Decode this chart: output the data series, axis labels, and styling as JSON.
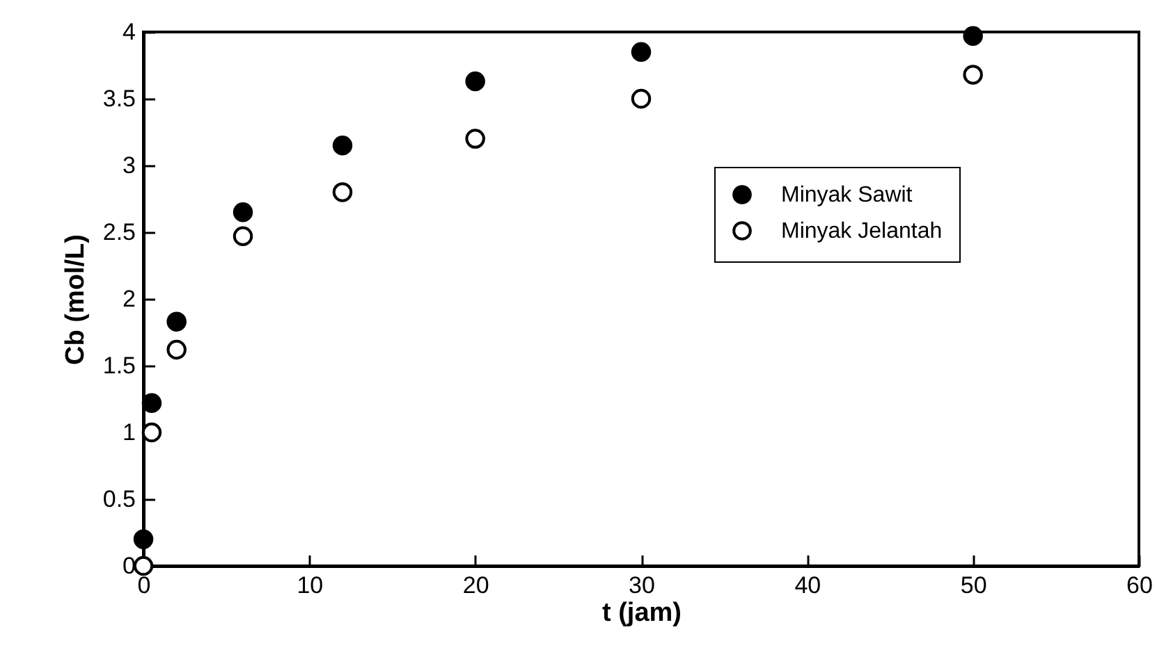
{
  "chart_data": {
    "type": "scatter",
    "xlabel": "t (jam)",
    "ylabel": "Cb (mol/L)",
    "x": [
      0,
      0.5,
      2,
      6,
      12,
      20,
      30,
      50
    ],
    "series": [
      {
        "name": "Minyak Sawit",
        "color": "#000000",
        "values": [
          0.2,
          1.22,
          1.83,
          2.65,
          3.15,
          3.63,
          3.85,
          3.97
        ]
      },
      {
        "name": "Minyak Jelantah",
        "color": "#ffffff",
        "values": [
          0,
          1.0,
          1.62,
          2.47,
          2.8,
          3.2,
          3.5,
          3.68
        ]
      }
    ],
    "xlim": [
      0,
      60
    ],
    "xticks": [
      0,
      10,
      20,
      30,
      40,
      50,
      60
    ],
    "ylim": [
      0,
      4
    ],
    "yticks": [
      0,
      0.5,
      1,
      1.5,
      2,
      2.5,
      3,
      3.5,
      4
    ],
    "grid": false,
    "legend": "right",
    "marker": "circle"
  }
}
